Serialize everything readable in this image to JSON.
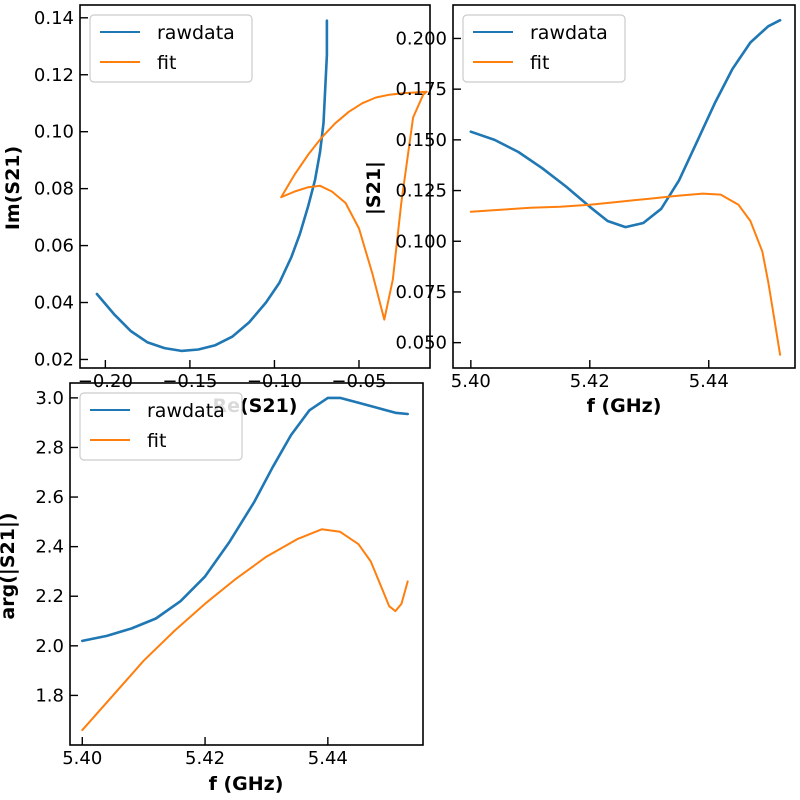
{
  "chart_data": [
    {
      "type": "line",
      "xlabel": "Re(S21)",
      "ylabel": "Im(S21)",
      "xlim": [
        -0.215,
        -0.008
      ],
      "ylim": [
        0.017,
        0.1445
      ],
      "xticks": [
        -0.2,
        -0.15,
        -0.1,
        -0.05
      ],
      "xtick_labels": [
        "−0.20",
        "−0.15",
        "−0.10",
        "−0.05"
      ],
      "yticks": [
        0.02,
        0.04,
        0.06,
        0.08,
        0.1,
        0.12,
        0.14
      ],
      "ytick_labels": [
        "0.02",
        "0.04",
        "0.06",
        "0.08",
        "0.10",
        "0.12",
        "0.14"
      ],
      "legend": {
        "position": "top-left",
        "entries": [
          "rawdata",
          "fit"
        ]
      },
      "series": [
        {
          "name": "rawdata",
          "color": "#1f77b4",
          "x": [
            -0.205,
            -0.195,
            -0.185,
            -0.175,
            -0.165,
            -0.155,
            -0.145,
            -0.135,
            -0.125,
            -0.115,
            -0.105,
            -0.097,
            -0.09,
            -0.085,
            -0.08,
            -0.076,
            -0.073,
            -0.071,
            -0.07,
            -0.069,
            -0.069
          ],
          "y": [
            0.043,
            0.036,
            0.03,
            0.026,
            0.024,
            0.023,
            0.0235,
            0.025,
            0.028,
            0.033,
            0.04,
            0.047,
            0.056,
            0.064,
            0.074,
            0.083,
            0.093,
            0.103,
            0.115,
            0.127,
            0.139
          ]
        },
        {
          "name": "fit",
          "color": "#ff7f0e",
          "x": [
            -0.096,
            -0.088,
            -0.08,
            -0.072,
            -0.064,
            -0.056,
            -0.048,
            -0.04,
            -0.032,
            -0.024,
            -0.016,
            -0.01,
            -0.012,
            -0.018,
            -0.025,
            -0.03,
            -0.035,
            -0.042,
            -0.05,
            -0.058,
            -0.066,
            -0.073,
            -0.08,
            -0.088,
            -0.096
          ],
          "y": [
            0.077,
            0.085,
            0.092,
            0.098,
            0.103,
            0.107,
            0.11,
            0.112,
            0.113,
            0.1135,
            0.1138,
            0.114,
            0.113,
            0.105,
            0.075,
            0.048,
            0.034,
            0.05,
            0.066,
            0.075,
            0.079,
            0.081,
            0.0805,
            0.079,
            0.077
          ]
        }
      ]
    },
    {
      "type": "line",
      "xlabel": "f (GHz)",
      "ylabel": "|S21|",
      "xlim": [
        5.397,
        5.4545
      ],
      "ylim": [
        0.0375,
        0.2165
      ],
      "xticks": [
        5.4,
        5.42,
        5.44
      ],
      "xtick_labels": [
        "5.40",
        "5.42",
        "5.44"
      ],
      "yticks": [
        0.05,
        0.075,
        0.1,
        0.125,
        0.15,
        0.175,
        0.2
      ],
      "ytick_labels": [
        "0.050",
        "0.075",
        "0.100",
        "0.125",
        "0.150",
        "0.175",
        "0.200"
      ],
      "legend": {
        "position": "top-left",
        "entries": [
          "rawdata",
          "fit"
        ]
      },
      "series": [
        {
          "name": "rawdata",
          "color": "#1f77b4",
          "x": [
            5.4,
            5.404,
            5.408,
            5.412,
            5.416,
            5.42,
            5.423,
            5.426,
            5.429,
            5.432,
            5.435,
            5.438,
            5.441,
            5.444,
            5.447,
            5.45,
            5.452
          ],
          "y": [
            0.154,
            0.15,
            0.144,
            0.136,
            0.127,
            0.117,
            0.11,
            0.107,
            0.109,
            0.116,
            0.13,
            0.149,
            0.168,
            0.185,
            0.198,
            0.206,
            0.209
          ]
        },
        {
          "name": "fit",
          "color": "#ff7f0e",
          "x": [
            5.4,
            5.405,
            5.41,
            5.415,
            5.42,
            5.425,
            5.43,
            5.435,
            5.439,
            5.442,
            5.445,
            5.447,
            5.449,
            5.45,
            5.451,
            5.452
          ],
          "y": [
            0.1145,
            0.1155,
            0.1165,
            0.117,
            0.118,
            0.1195,
            0.121,
            0.1225,
            0.1235,
            0.123,
            0.118,
            0.11,
            0.095,
            0.08,
            0.062,
            0.044
          ]
        }
      ]
    },
    {
      "type": "line",
      "xlabel": "f (GHz)",
      "ylabel": "arg(|S21|)",
      "xlim": [
        5.398,
        5.4555
      ],
      "ylim": [
        1.6,
        3.06
      ],
      "xticks": [
        5.4,
        5.42,
        5.44
      ],
      "xtick_labels": [
        "5.40",
        "5.42",
        "5.44"
      ],
      "yticks": [
        1.8,
        2.0,
        2.2,
        2.4,
        2.6,
        2.8,
        3.0
      ],
      "ytick_labels": [
        "1.8",
        "2.0",
        "2.2",
        "2.4",
        "2.6",
        "2.8",
        "3.0"
      ],
      "legend": {
        "position": "top-left",
        "entries": [
          "rawdata",
          "fit"
        ]
      },
      "series": [
        {
          "name": "rawdata",
          "color": "#1f77b4",
          "x": [
            5.4,
            5.404,
            5.408,
            5.412,
            5.416,
            5.42,
            5.424,
            5.428,
            5.431,
            5.434,
            5.437,
            5.44,
            5.442,
            5.445,
            5.448,
            5.451,
            5.453
          ],
          "y": [
            2.02,
            2.04,
            2.07,
            2.11,
            2.18,
            2.28,
            2.42,
            2.58,
            2.72,
            2.85,
            2.95,
            3.0,
            3.0,
            2.98,
            2.96,
            2.94,
            2.935
          ]
        },
        {
          "name": "fit",
          "color": "#ff7f0e",
          "x": [
            5.4,
            5.405,
            5.41,
            5.415,
            5.42,
            5.425,
            5.43,
            5.435,
            5.439,
            5.442,
            5.445,
            5.447,
            5.449,
            5.45,
            5.451,
            5.452,
            5.453
          ],
          "y": [
            1.66,
            1.8,
            1.94,
            2.06,
            2.17,
            2.27,
            2.36,
            2.43,
            2.47,
            2.46,
            2.41,
            2.34,
            2.22,
            2.16,
            2.14,
            2.17,
            2.26
          ]
        }
      ]
    }
  ]
}
